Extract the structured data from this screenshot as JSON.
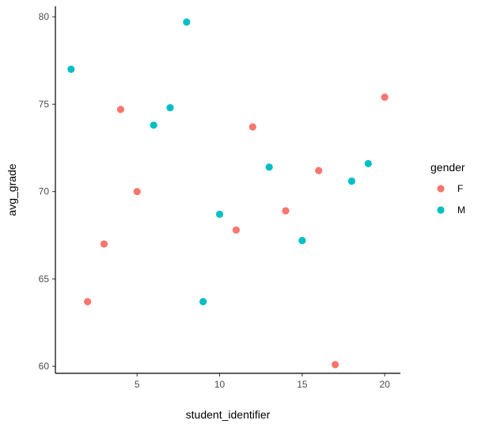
{
  "chart_data": {
    "type": "scatter",
    "title": "",
    "xlabel": "student_identifier",
    "ylabel": "avg_grade",
    "xlim": [
      0.05,
      20.95
    ],
    "ylim": [
      59.6,
      80.6
    ],
    "xticks": [
      5,
      10,
      15,
      20
    ],
    "yticks": [
      60,
      65,
      70,
      75,
      80
    ],
    "grid": false,
    "legend": {
      "title": "gender",
      "position": "right"
    },
    "series": [
      {
        "name": "F",
        "color": "#F8766D",
        "points": [
          {
            "x": 2,
            "y": 63.7
          },
          {
            "x": 3,
            "y": 67.0
          },
          {
            "x": 4,
            "y": 74.7
          },
          {
            "x": 5,
            "y": 70.0
          },
          {
            "x": 11,
            "y": 67.8
          },
          {
            "x": 12,
            "y": 73.7
          },
          {
            "x": 14,
            "y": 68.9
          },
          {
            "x": 16,
            "y": 71.2
          },
          {
            "x": 17,
            "y": 60.1
          },
          {
            "x": 20,
            "y": 75.4
          }
        ]
      },
      {
        "name": "M",
        "color": "#00BFC4",
        "points": [
          {
            "x": 1,
            "y": 77.0
          },
          {
            "x": 6,
            "y": 73.8
          },
          {
            "x": 7,
            "y": 74.8
          },
          {
            "x": 8,
            "y": 79.7
          },
          {
            "x": 9,
            "y": 63.7
          },
          {
            "x": 10,
            "y": 68.7
          },
          {
            "x": 13,
            "y": 71.4
          },
          {
            "x": 15,
            "y": 67.2
          },
          {
            "x": 18,
            "y": 70.6
          },
          {
            "x": 19,
            "y": 71.6
          }
        ]
      }
    ]
  }
}
